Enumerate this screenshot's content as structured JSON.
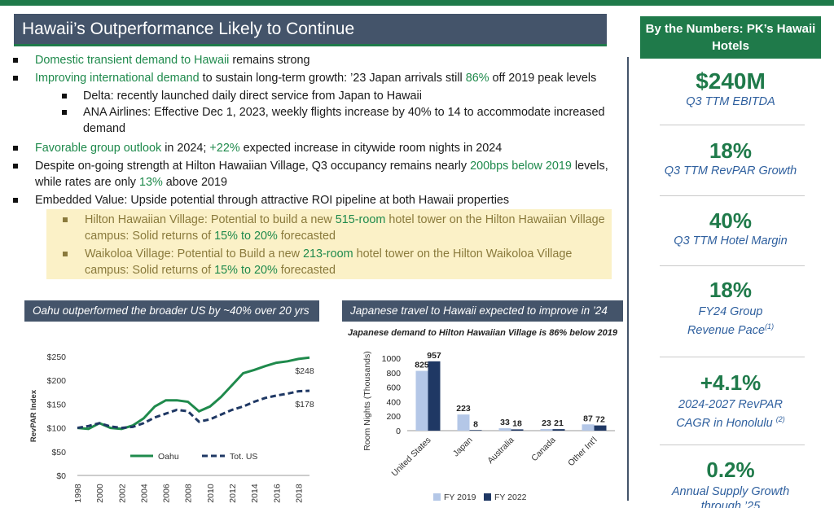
{
  "slide": {
    "title": "Hawaii’s Outperformance Likely to Continue"
  },
  "bullets": {
    "b1": {
      "green": "Domestic transient demand to Hawaii",
      "rest": " remains strong"
    },
    "b2": {
      "green": "Improving international demand",
      "mid": " to sustain long-term growth: ’23 Japan arrivals still ",
      "green2": "86%",
      "rest": " off 2019 peak levels"
    },
    "b2_sub1": "Delta: recently launched daily direct service from Japan to Hawaii",
    "b2_sub2": "ANA Airlines: Effective Dec 1, 2023, weekly flights increase by 40% to 14 to accommodate increased demand",
    "b3": {
      "green": "Favorable group outlook",
      "mid": " in 2024; ",
      "green2": "+22%",
      "rest": " expected increase in citywide room nights in 2024"
    },
    "b4": {
      "pre": "Despite on-going strength at Hilton Hawaiian Village, Q3 occupancy remains nearly ",
      "green": "200bps below 2019",
      "mid": " levels, while rates are only ",
      "green2": "13%",
      "rest": " above 2019"
    },
    "b5": "Embedded Value: Upside potential through attractive ROI pipeline at both Hawaii properties",
    "hl1": {
      "name": "Hilton Hawaiian Village",
      "pre": ": Potential to build a new ",
      "green": "515-room",
      "mid": " hotel tower on the Hilton Hawaiian Village campus: Solid returns of ",
      "green2": "15% to 20%",
      "rest": " forecasted"
    },
    "hl2": {
      "name": "Waikoloa Village",
      "pre": ": Potential to Build a new ",
      "green": "213-room",
      "mid": " hotel tower on the Hilton Waikoloa Village campus: Solid returns of ",
      "green2": "15% to 20%",
      "rest": " forecasted"
    }
  },
  "panel": {
    "header": "By the Numbers: PK’s Hawaii Hotels",
    "stats": [
      {
        "value": "$240M",
        "label": "Q3 TTM EBITDA"
      },
      {
        "value": "18%",
        "label": "Q3 TTM RevPAR Growth"
      },
      {
        "value": "40%",
        "label": "Q3 TTM Hotel Margin"
      },
      {
        "value": "18%",
        "label": "FY24 Group Revenue Pace",
        "note": "(1)"
      },
      {
        "value": "+4.1%",
        "label": "2024-2027 RevPAR CAGR in Honolulu",
        "note": "(2)"
      },
      {
        "value": "0.2%",
        "label": "Annual Supply Growth through ’25"
      }
    ]
  },
  "chart_data": [
    {
      "type": "line",
      "title": "Oahu outperformed the broader US by ~40% over 20 yrs",
      "ylabel": "RevPAR Index",
      "ylim": [
        0,
        250
      ],
      "yticks": [
        "$0",
        "$50",
        "$100",
        "$150",
        "$200",
        "$250"
      ],
      "x": [
        1998,
        1999,
        2000,
        2001,
        2002,
        2003,
        2004,
        2005,
        2006,
        2007,
        2008,
        2009,
        2010,
        2011,
        2012,
        2013,
        2014,
        2015,
        2016,
        2017,
        2018,
        2019
      ],
      "xticks": [
        "1998",
        "2000",
        "2002",
        "2004",
        "2006",
        "2008",
        "2010",
        "2012",
        "2014",
        "2016",
        "2018"
      ],
      "series": [
        {
          "name": "Oahu",
          "color": "#1f8a4c",
          "dash": false,
          "values": [
            100,
            98,
            110,
            100,
            98,
            105,
            120,
            145,
            158,
            158,
            155,
            135,
            145,
            165,
            190,
            215,
            222,
            230,
            237,
            240,
            245,
            248
          ],
          "end_label": "$248"
        },
        {
          "name": "Tot. US",
          "color": "#1f3864",
          "dash": true,
          "values": [
            100,
            104,
            110,
            103,
            100,
            102,
            110,
            122,
            130,
            138,
            135,
            113,
            118,
            128,
            138,
            145,
            155,
            163,
            168,
            172,
            177,
            178
          ],
          "end_label": "$178"
        }
      ]
    },
    {
      "type": "bar",
      "title": "Japanese travel to Hawaii expected to improve in ’24",
      "subtitle": "Japanese demand to Hilton Hawaiian Village is 86% below 2019",
      "ylabel": "Room Nights (Thousands)",
      "ylim": [
        0,
        1000
      ],
      "yticks": [
        "0",
        "200",
        "400",
        "600",
        "800",
        "1000"
      ],
      "categories": [
        "United States",
        "Japan",
        "Australia",
        "Canada",
        "Other Int'l"
      ],
      "series": [
        {
          "name": "FY 2019",
          "color": "#b4c7e7",
          "values": [
            825,
            223,
            33,
            23,
            87
          ]
        },
        {
          "name": "FY 2022",
          "color": "#1f3864",
          "values": [
            957,
            8,
            18,
            21,
            72
          ]
        }
      ]
    }
  ]
}
